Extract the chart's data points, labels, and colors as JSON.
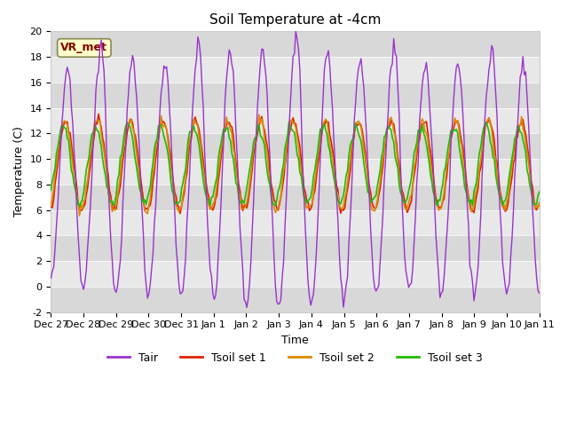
{
  "title": "Soil Temperature at -4cm",
  "xlabel": "Time",
  "ylabel": "Temperature (C)",
  "ylim": [
    -2,
    20
  ],
  "annotation": "VR_met",
  "bg_color": "#ffffff",
  "stripe_colors": [
    "#e8e8e8",
    "#d8d8d8"
  ],
  "line_colors": {
    "Tair": "#9933cc",
    "Tsoil1": "#dd2200",
    "Tsoil2": "#dd8800",
    "Tsoil3": "#22bb00"
  },
  "legend_labels": [
    "Tair",
    "Tsoil set 1",
    "Tsoil set 2",
    "Tsoil set 3"
  ],
  "xtick_labels": [
    "Dec 27",
    "Dec 28",
    "Dec 29",
    "Dec 30",
    "Dec 31",
    "Jan 1",
    "Jan 2",
    "Jan 3",
    "Jan 4",
    "Jan 5",
    "Jan 6",
    "Jan 7",
    "Jan 8",
    "Jan 9",
    "Jan 10",
    "Jan 11"
  ],
  "num_days": 15,
  "points_per_day": 24
}
